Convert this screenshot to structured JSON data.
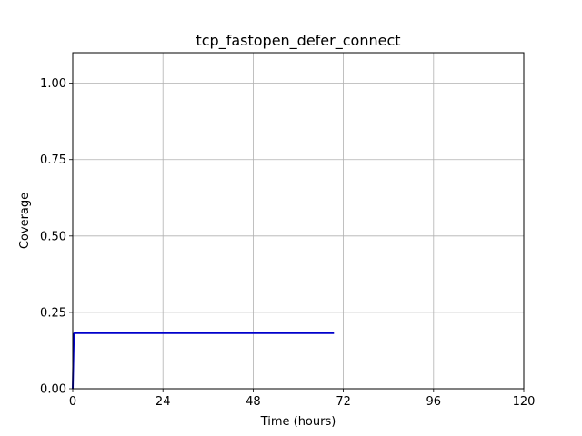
{
  "chart_data": {
    "type": "line",
    "title": "tcp_fastopen_defer_connect",
    "xlabel": "Time (hours)",
    "ylabel": "Coverage",
    "xlim": [
      0,
      120
    ],
    "ylim": [
      0,
      1.1
    ],
    "xticks": [
      0,
      24,
      48,
      72,
      96,
      120
    ],
    "xtick_labels": [
      "0",
      "24",
      "48",
      "72",
      "96",
      "120"
    ],
    "yticks": [
      0,
      0.25,
      0.5,
      0.75,
      1.0
    ],
    "ytick_labels": [
      "0.00",
      "0.25",
      "0.50",
      "0.75",
      "1.00"
    ],
    "grid": true,
    "series": [
      {
        "color": "#0000cc",
        "x": [
          0,
          0.3,
          0.5,
          69.5
        ],
        "y": [
          0,
          0.18,
          0.182,
          0.182
        ]
      }
    ]
  }
}
